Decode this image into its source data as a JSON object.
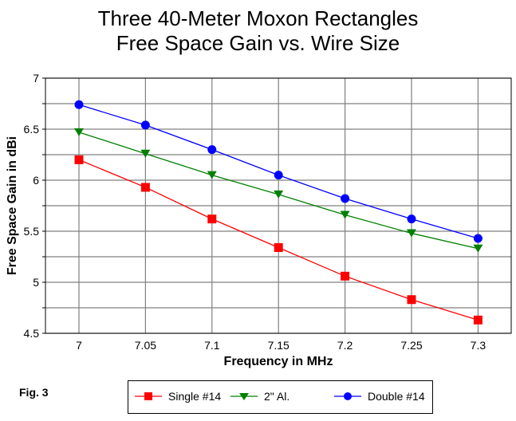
{
  "chart_data": {
    "type": "line",
    "title": [
      "Three 40-Meter Moxon Rectangles",
      "Free Space Gain vs. Wire Size"
    ],
    "xlabel": "Frequency in MHz",
    "ylabel": "Free Space Gain in dBi",
    "x": [
      7.0,
      7.05,
      7.1,
      7.15,
      7.2,
      7.25,
      7.3
    ],
    "x_tick_labels": [
      "7",
      "7.05",
      "7.1",
      "7.15",
      "7.2",
      "7.25",
      "7.3"
    ],
    "xlim": [
      6.965,
      7.325
    ],
    "ylim": [
      4.5,
      7.0
    ],
    "y_ticks": [
      4.5,
      5,
      5.5,
      6,
      6.5,
      7
    ],
    "y_tick_labels": [
      "4.5",
      "5",
      "5.5",
      "6",
      "6.5",
      "7"
    ],
    "y_minor_grid": [
      4.75,
      5.25,
      5.75,
      6.25,
      6.75
    ],
    "grid": true,
    "legend_position": "bottom",
    "series": [
      {
        "name": "Single #14",
        "color": "#ff0000",
        "marker": "square",
        "values": [
          6.2,
          5.93,
          5.62,
          5.34,
          5.06,
          4.83,
          4.63
        ]
      },
      {
        "name": "2\" Al.",
        "color": "#008000",
        "marker": "triangle-down",
        "values": [
          6.47,
          6.26,
          6.05,
          5.86,
          5.66,
          5.48,
          5.33
        ]
      },
      {
        "name": "Double #14",
        "color": "#0000ff",
        "marker": "circle",
        "values": [
          6.74,
          6.54,
          6.3,
          6.05,
          5.82,
          5.62,
          5.43
        ]
      }
    ],
    "annotation": "Fig. 3"
  }
}
